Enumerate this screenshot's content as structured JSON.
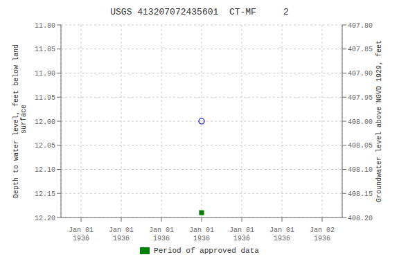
{
  "chart_data": {
    "type": "scatter",
    "title": "USGS 413207072435601  CT-MF     2",
    "ylabel": "Depth to water level, feet below land\n surface",
    "y2label": "Groundwater level above NGVD 1929, feet",
    "categories": [
      "Jan 01\n1936",
      "Jan 01\n1936",
      "Jan 01\n1936",
      "Jan 01\n1936",
      "Jan 01\n1936",
      "Jan 01\n1936",
      "Jan 02\n1936"
    ],
    "series": [
      {
        "color": "#0000cc",
        "marker": "circle_open",
        "values": [
          null,
          null,
          null,
          12.0,
          null,
          null,
          null
        ]
      },
      {
        "name": "Period of approved data",
        "color": "#008000",
        "marker": "square",
        "values": [
          null,
          null,
          null,
          12.19,
          null,
          null,
          null
        ]
      }
    ],
    "ylim": [
      12.2,
      11.8
    ],
    "yticks": [
      {
        "value": 11.8,
        "label": "11.80"
      },
      {
        "value": 11.85,
        "label": "11.85"
      },
      {
        "value": 11.9,
        "label": "11.90"
      },
      {
        "value": 11.95,
        "label": "11.95"
      },
      {
        "value": 12.0,
        "label": "12.00"
      },
      {
        "value": 12.05,
        "label": "12.05"
      },
      {
        "value": 12.1,
        "label": "12.10"
      },
      {
        "value": 12.15,
        "label": "12.15"
      },
      {
        "value": 12.2,
        "label": "12.20"
      }
    ],
    "y2lim": [
      408.2,
      407.8
    ],
    "y2ticks": [
      {
        "value": 408.2,
        "label": "408.20"
      },
      {
        "value": 408.15,
        "label": "408.15"
      },
      {
        "value": 408.1,
        "label": "408.10"
      },
      {
        "value": 408.05,
        "label": "408.05"
      },
      {
        "value": 408.0,
        "label": "408.00"
      },
      {
        "value": 407.95,
        "label": "407.95"
      },
      {
        "value": 407.9,
        "label": "407.90"
      },
      {
        "value": 407.85,
        "label": "407.85"
      },
      {
        "value": 407.8,
        "label": "407.80"
      }
    ],
    "grid": true,
    "legend": "bottom"
  }
}
